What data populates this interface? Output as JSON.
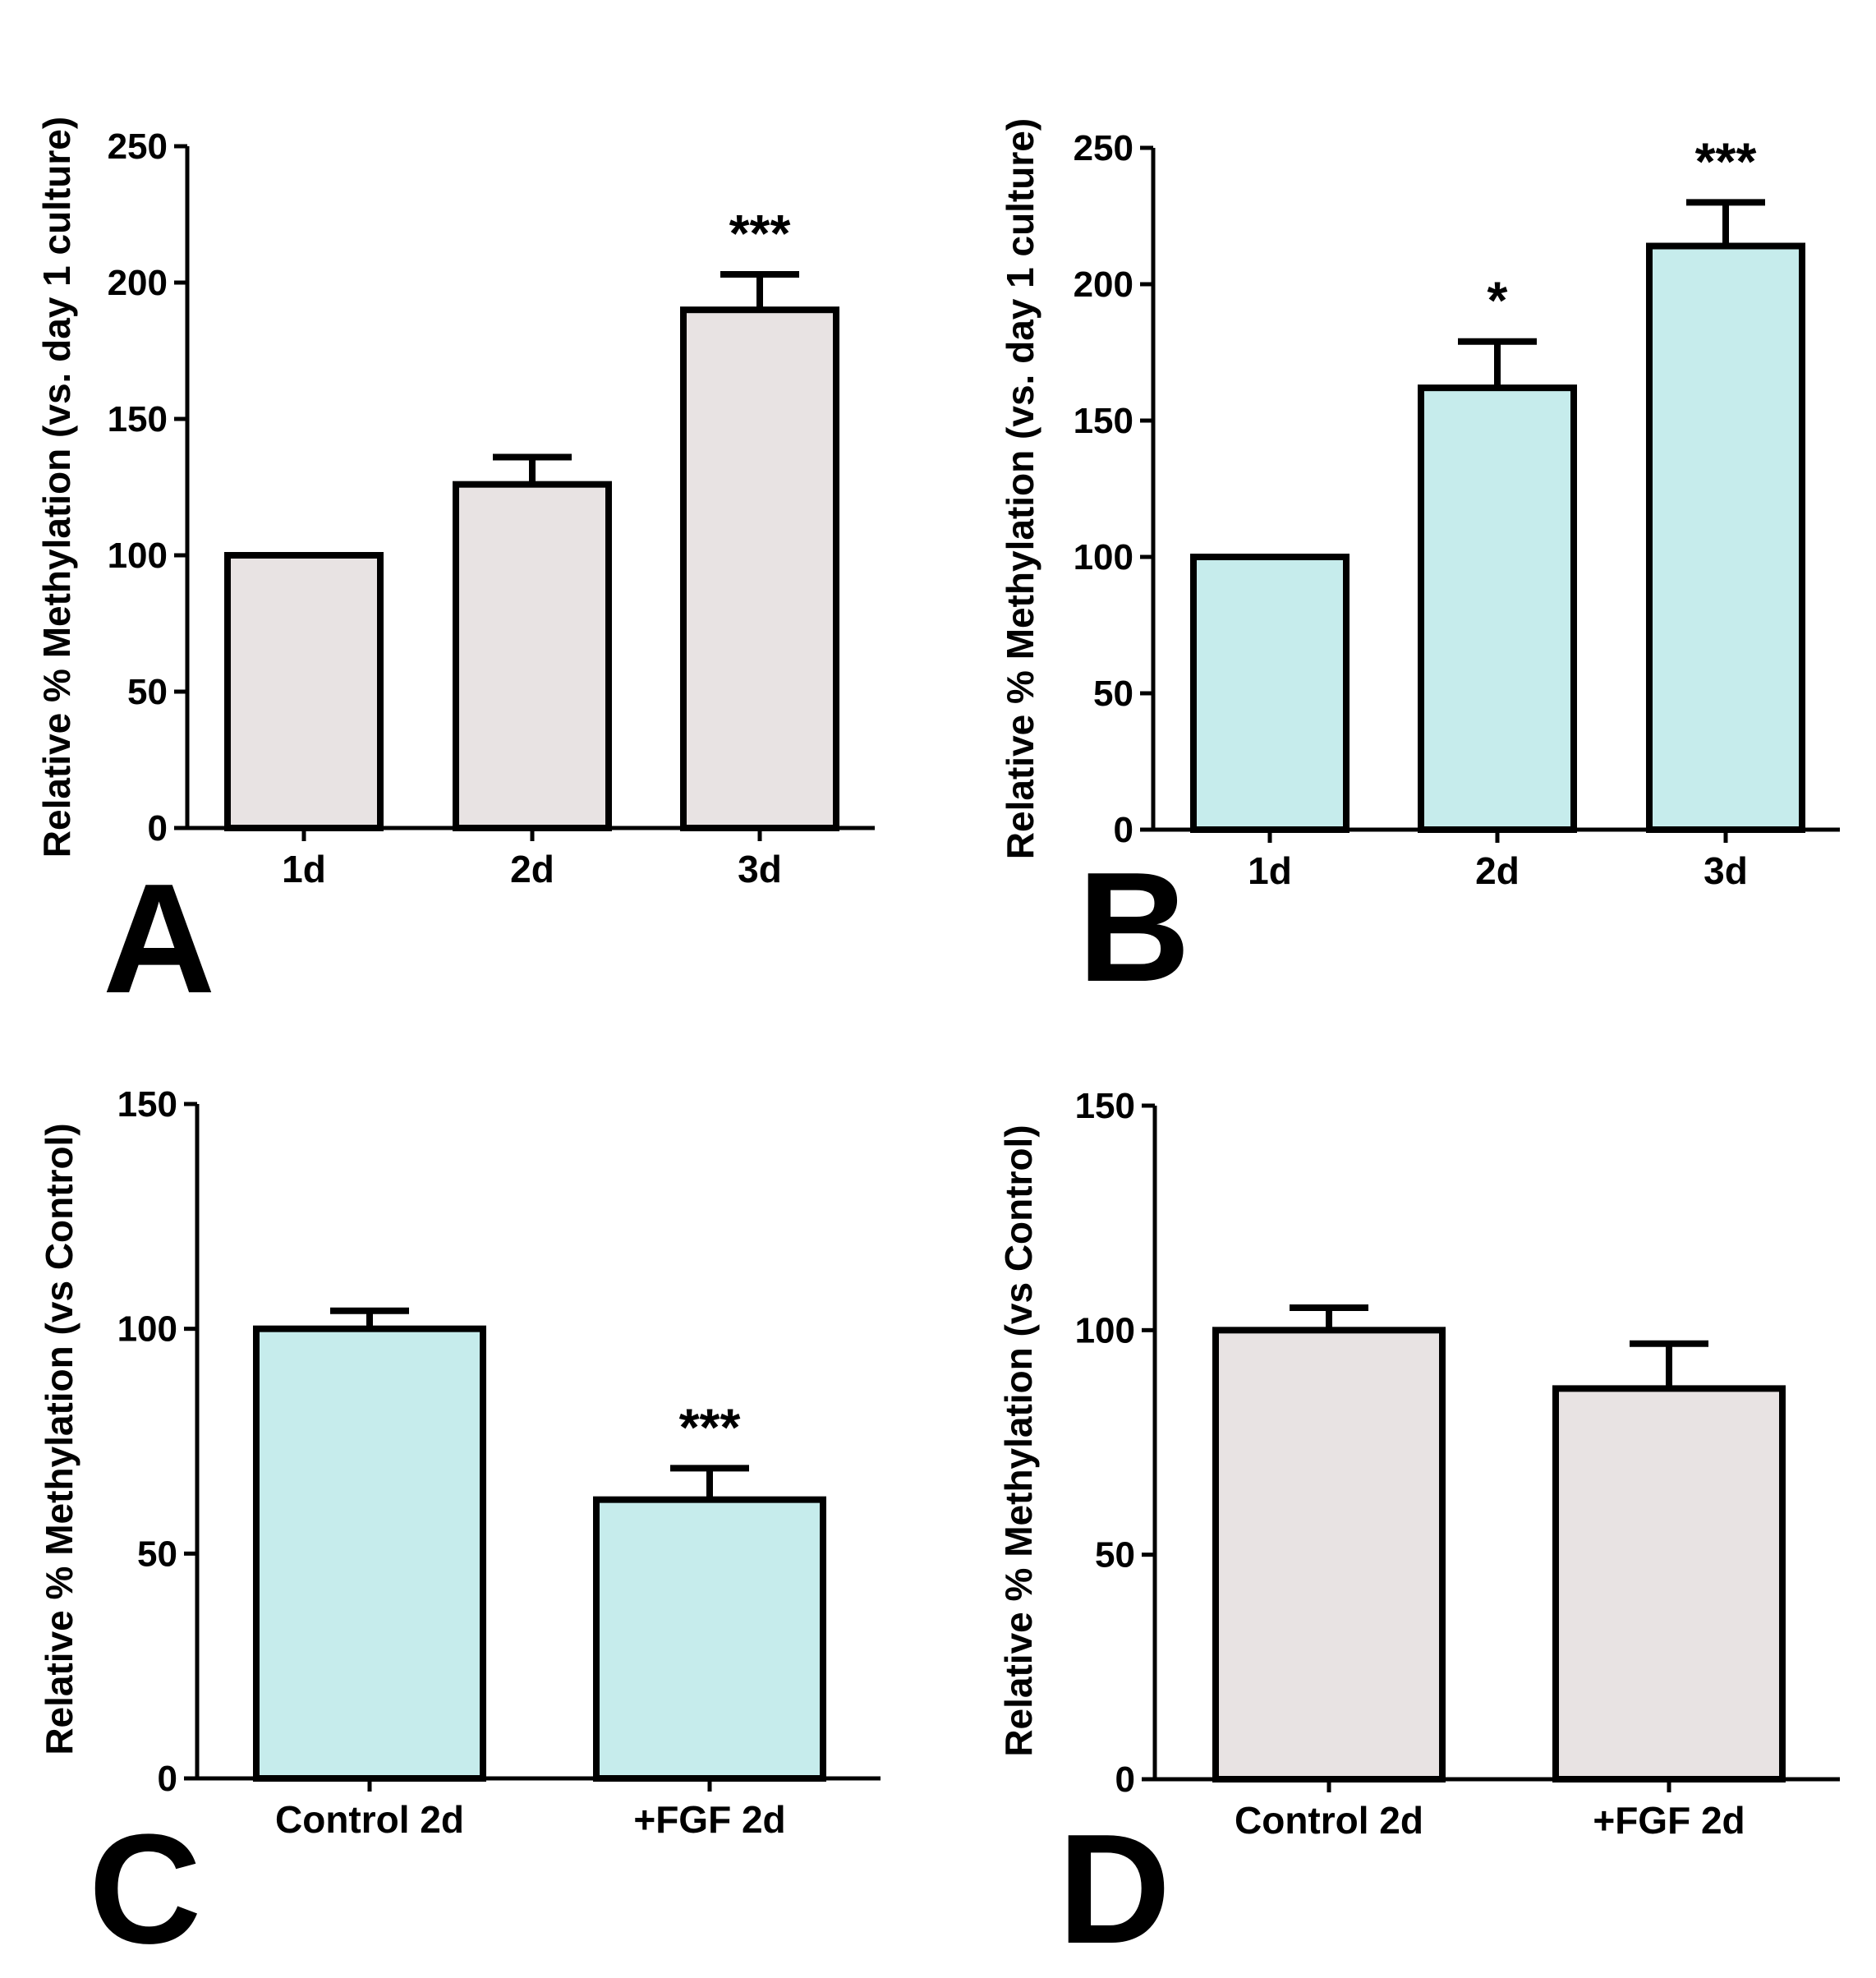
{
  "figure": {
    "panels": [
      "A",
      "B",
      "C",
      "D"
    ]
  },
  "chart_data": [
    {
      "panel": "A",
      "type": "bar",
      "panel_label": "A",
      "title": "",
      "xlabel": "",
      "ylabel": "Relative % Methylation (vs. day 1 culture)",
      "categories": [
        "1d",
        "2d",
        "3d"
      ],
      "values": [
        100,
        126,
        190
      ],
      "errors": [
        0,
        10,
        13
      ],
      "significance": [
        "",
        "",
        "***"
      ],
      "ylim": [
        0,
        250
      ],
      "yticks": [
        0,
        50,
        100,
        150,
        200,
        250
      ],
      "bar_color": "#e8e3e3",
      "grid": false
    },
    {
      "panel": "B",
      "type": "bar",
      "panel_label": "B",
      "title": "",
      "xlabel": "",
      "ylabel": "Relative % Methylation (vs. day 1 culture)",
      "categories": [
        "1d",
        "2d",
        "3d"
      ],
      "values": [
        100,
        162,
        214
      ],
      "errors": [
        0,
        17,
        16
      ],
      "significance": [
        "",
        "*",
        "***"
      ],
      "ylim": [
        0,
        250
      ],
      "yticks": [
        0,
        50,
        100,
        150,
        200,
        250
      ],
      "bar_color": "#c6ecec",
      "grid": false
    },
    {
      "panel": "C",
      "type": "bar",
      "panel_label": "C",
      "title": "",
      "xlabel": "",
      "ylabel": "Relative % Methylation (vs Control)",
      "categories": [
        "Control 2d",
        "+FGF 2d"
      ],
      "values": [
        100,
        62
      ],
      "errors": [
        4,
        7
      ],
      "significance": [
        "",
        "***"
      ],
      "ylim": [
        0,
        150
      ],
      "yticks": [
        0,
        50,
        100,
        150
      ],
      "bar_color": "#c6ecec",
      "grid": false
    },
    {
      "panel": "D",
      "type": "bar",
      "panel_label": "D",
      "title": "",
      "xlabel": "",
      "ylabel": "Relative % Methylation (vs Control)",
      "categories": [
        "Control 2d",
        "+FGF 2d"
      ],
      "values": [
        100,
        87
      ],
      "errors": [
        5,
        10
      ],
      "significance": [
        "",
        ""
      ],
      "ylim": [
        0,
        150
      ],
      "yticks": [
        0,
        50,
        100,
        150
      ],
      "bar_color": "#e8e3e3",
      "grid": false
    }
  ]
}
